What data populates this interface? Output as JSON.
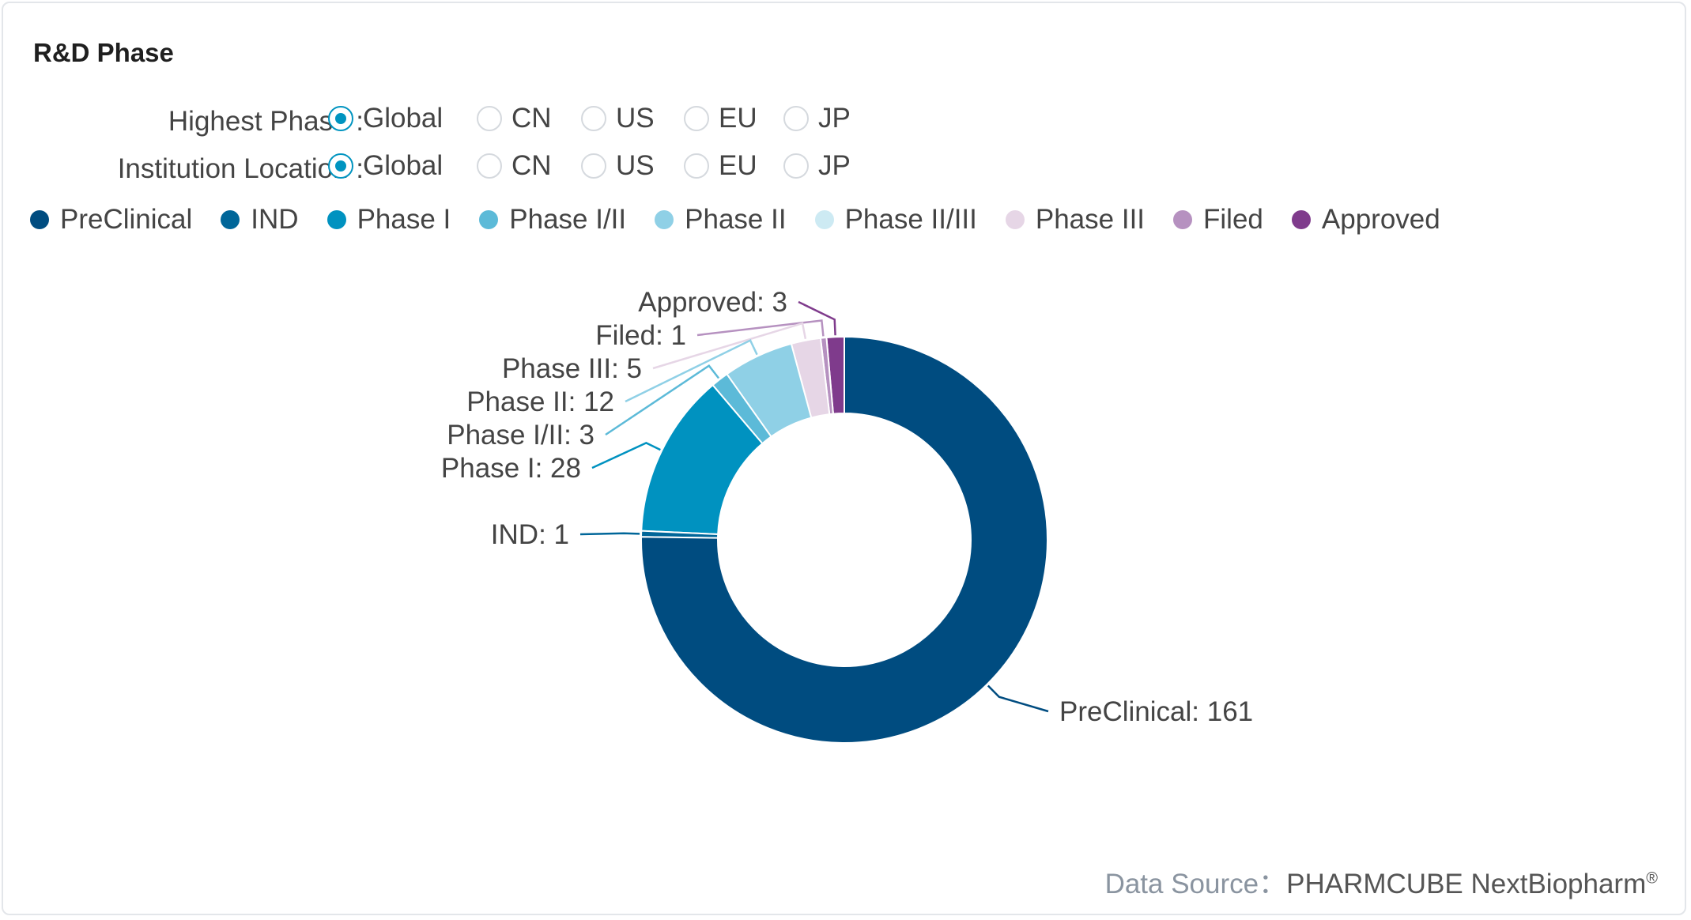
{
  "title": "R&D Phase",
  "filters": [
    {
      "label": "Highest Phase :",
      "options": [
        "Global",
        "CN",
        "US",
        "EU",
        "JP"
      ],
      "selected": 0
    },
    {
      "label": "Institution Location :",
      "options": [
        "Global",
        "CN",
        "US",
        "EU",
        "JP"
      ],
      "selected": 0
    }
  ],
  "footer": {
    "prefix": "Data Source：",
    "brand": "PHARMCUBE NextBiopharm",
    "mark": "®"
  },
  "chart_data": {
    "type": "pie",
    "donut": true,
    "legend_position": "top-left",
    "categories": [
      "PreClinical",
      "IND",
      "Phase I",
      "Phase I/II",
      "Phase II",
      "Phase II/III",
      "Phase III",
      "Filed",
      "Approved"
    ],
    "values": [
      161,
      1,
      28,
      3,
      12,
      0,
      5,
      1,
      3
    ],
    "colors": [
      "#004c80",
      "#006699",
      "#0092c0",
      "#5cbad8",
      "#8fd0e6",
      "#cdeaf3",
      "#e6d6e6",
      "#b691c0",
      "#7f3b8c"
    ],
    "data_labels": [
      "PreClinical: 161",
      "IND: 1",
      "Phase I: 28",
      "Phase I/II: 3",
      "Phase II: 12",
      "",
      "Phase III: 5",
      "Filed: 1",
      "Approved: 3"
    ]
  }
}
